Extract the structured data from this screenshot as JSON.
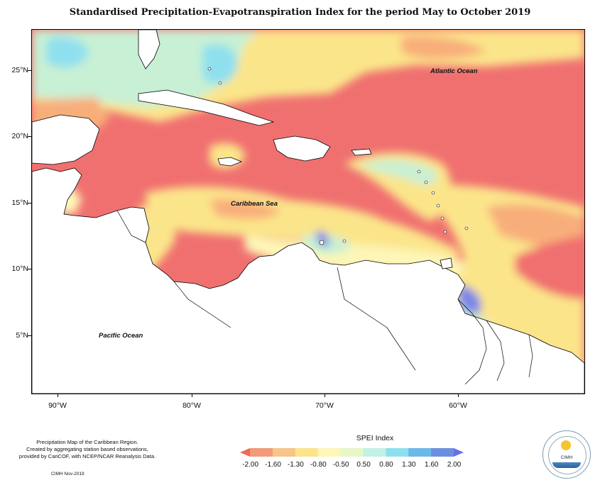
{
  "title": "Standardised Precipitation-Evapotranspiration Index for the period May to October 2019",
  "axes": {
    "lat_labels": [
      "25°N",
      "20°N",
      "15°N",
      "10°N",
      "5°N"
    ],
    "lon_labels": [
      "90°W",
      "80°W",
      "70°W",
      "60°W"
    ]
  },
  "ocean_labels": {
    "atlantic": "Atlantic Ocean",
    "caribbean": "Caribbean Sea",
    "pacific": "Pacific Ocean"
  },
  "legend": {
    "title": "SPEI Index",
    "ticks": [
      "-2.00",
      "-1.60",
      "-1.30",
      "-0.80",
      "-0.50",
      "0.50",
      "0.80",
      "1.30",
      "1.60",
      "2.00"
    ],
    "colors": [
      "#ee6a5a",
      "#f39a7a",
      "#f7c48a",
      "#fbe58a",
      "#fdf6b8",
      "#e8f7c8",
      "#c4f0e6",
      "#8fe0ee",
      "#6cb8e8",
      "#6c8fe0",
      "#6a6ee6"
    ]
  },
  "footnote": {
    "line1": "Precipitation Map of the Caribbean Region.",
    "line2": "Created by aggregating station based observations,",
    "line3": "provided by CariCOF, with NCEP/NCAR Reanalysis Data.",
    "credit": "CIMH Nov-2019"
  },
  "logo": {
    "text": "CIMH"
  },
  "colors": {
    "very_dry": "#f07070",
    "dry": "#f8ae7a",
    "mod_dry": "#fbe58a",
    "near_normal": "#fdf6b8",
    "wet": "#c8f0d4",
    "very_wet": "#8fe0ee",
    "extreme_wet": "#7a86e8",
    "land": "#ffffff"
  }
}
